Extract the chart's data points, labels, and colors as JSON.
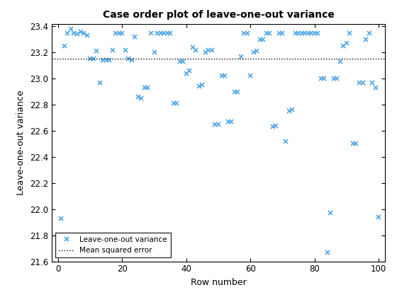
{
  "title": "Case order plot of leave-one-out variance",
  "xlabel": "Row number",
  "ylabel": "Leave-one-out variance",
  "xlim": [
    -2,
    102
  ],
  "ylim": [
    21.6,
    23.42
  ],
  "yticks": [
    21.6,
    21.8,
    22.0,
    22.2,
    22.4,
    22.6,
    22.8,
    23.0,
    23.2,
    23.4
  ],
  "xticks": [
    0,
    20,
    40,
    60,
    80,
    100
  ],
  "mse_value": 23.15,
  "marker_color": "#4da6e8",
  "marker": "x",
  "markersize": 5,
  "markeredgewidth": 1.2,
  "legend_labels": [
    "Leave-one-out variance",
    "Mean squared error"
  ],
  "legend_loc": "lower left",
  "x": [
    1,
    2,
    3,
    4,
    5,
    6,
    7,
    8,
    9,
    10,
    11,
    12,
    13,
    14,
    15,
    16,
    17,
    18,
    19,
    20,
    21,
    22,
    23,
    24,
    25,
    26,
    27,
    28,
    29,
    30,
    31,
    32,
    33,
    34,
    35,
    36,
    37,
    38,
    39,
    40,
    41,
    42,
    43,
    44,
    45,
    46,
    47,
    48,
    49,
    50,
    51,
    52,
    53,
    54,
    55,
    56,
    57,
    58,
    59,
    60,
    61,
    62,
    63,
    64,
    65,
    66,
    67,
    68,
    69,
    70,
    71,
    72,
    73,
    74,
    75,
    76,
    77,
    78,
    79,
    80,
    81,
    82,
    83,
    84,
    85,
    86,
    87,
    88,
    89,
    90,
    91,
    92,
    93,
    94,
    95,
    96,
    97,
    98,
    99,
    100
  ],
  "y": [
    21.93,
    23.25,
    23.35,
    23.38,
    23.35,
    23.34,
    23.36,
    23.35,
    23.33,
    23.15,
    23.15,
    23.21,
    22.97,
    23.14,
    23.14,
    23.14,
    23.22,
    23.35,
    23.35,
    23.35,
    23.22,
    23.15,
    23.14,
    23.32,
    22.86,
    22.85,
    22.93,
    22.93,
    23.35,
    23.2,
    23.35,
    23.35,
    23.35,
    23.35,
    23.35,
    22.81,
    22.81,
    23.13,
    23.13,
    23.04,
    23.06,
    23.24,
    23.22,
    22.94,
    22.95,
    23.2,
    23.22,
    23.22,
    22.65,
    22.65,
    23.02,
    23.02,
    22.67,
    22.67,
    22.9,
    22.9,
    23.17,
    23.35,
    23.35,
    23.02,
    23.2,
    23.21,
    23.3,
    23.3,
    23.35,
    23.35,
    22.63,
    22.64,
    23.35,
    23.35,
    22.52,
    22.75,
    22.76,
    23.35,
    23.35,
    23.35,
    23.35,
    23.35,
    23.35,
    23.35,
    23.35,
    23.0,
    23.0,
    21.67,
    21.97,
    23.0,
    23.0,
    23.13,
    23.25,
    23.27,
    23.35,
    22.5,
    22.5,
    22.97,
    22.97,
    23.3,
    23.35,
    22.97,
    22.93,
    21.94
  ]
}
